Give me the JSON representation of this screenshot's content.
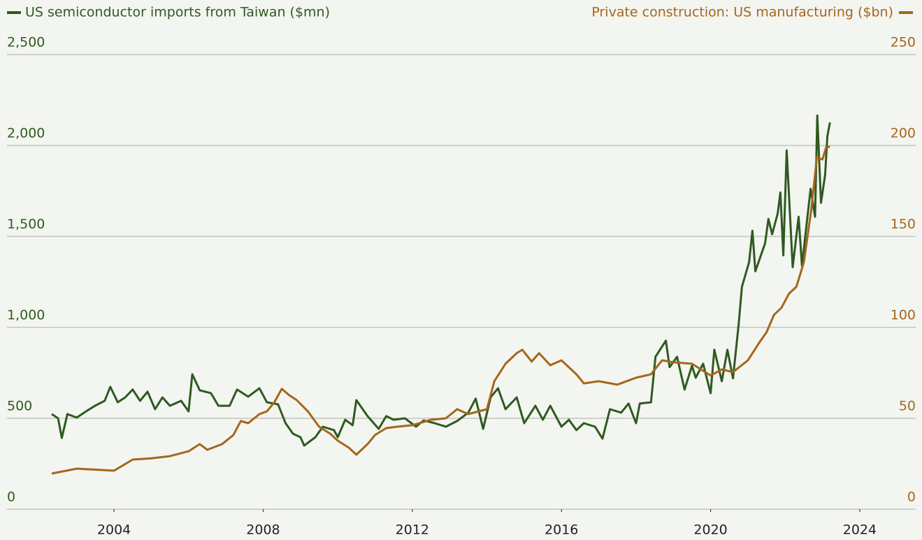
{
  "chart_data": {
    "type": "line",
    "xlim": [
      2001.13,
      2025.5
    ],
    "xticks": [
      2004,
      2008,
      2012,
      2016,
      2020,
      2024
    ],
    "ylim": [
      0,
      2500
    ],
    "yticks": [
      0,
      500,
      {
        "value": 1000,
        "label": "1,000"
      },
      {
        "value": 1500,
        "label": "1,500"
      },
      {
        "value": 2000,
        "label": "2,000"
      },
      {
        "value": 2500,
        "label": "2,500"
      }
    ],
    "y2lim": [
      0,
      250
    ],
    "y2ticks": [
      0,
      50,
      100,
      150,
      200,
      250
    ],
    "grid": true,
    "series": [
      {
        "name": "US semiconductor imports from Taiwan ($mn)",
        "color": "#2f5a20",
        "axis": "y",
        "x": [
          2002.33,
          2002.5,
          2002.6,
          2002.75,
          2003,
          2003.25,
          2003.5,
          2003.75,
          2003.9,
          2004.1,
          2004.3,
          2004.5,
          2004.7,
          2004.9,
          2005.1,
          2005.3,
          2005.5,
          2005.8,
          2006.0,
          2006.1,
          2006.3,
          2006.6,
          2006.8,
          2007.1,
          2007.3,
          2007.6,
          2007.9,
          2008.1,
          2008.4,
          2008.6,
          2008.8,
          2009.0,
          2009.1,
          2009.4,
          2009.6,
          2009.9,
          2010.0,
          2010.2,
          2010.4,
          2010.5,
          2010.8,
          2011.1,
          2011.3,
          2011.5,
          2011.8,
          2012.1,
          2012.3,
          2012.6,
          2012.9,
          2013.2,
          2013.5,
          2013.7,
          2013.9,
          2014.1,
          2014.3,
          2014.5,
          2014.8,
          2015.0,
          2015.3,
          2015.5,
          2015.7,
          2016.0,
          2016.2,
          2016.4,
          2016.6,
          2016.9,
          2017.1,
          2017.3,
          2017.6,
          2017.8,
          2018.0,
          2018.1,
          2018.4,
          2018.52,
          2018.8,
          2018.9,
          2019.1,
          2019.3,
          2019.5,
          2019.6,
          2019.8,
          2020.0,
          2020.1,
          2020.3,
          2020.45,
          2020.6,
          2020.75,
          2020.84,
          2021.03,
          2021.12,
          2021.2,
          2021.46,
          2021.55,
          2021.65,
          2021.8,
          2021.87,
          2021.95,
          2022.04,
          2022.2,
          2022.36,
          2022.45,
          2022.68,
          2022.8,
          2022.86,
          2022.96,
          2023.07,
          2023.13,
          2023.2
        ],
        "values": [
          523,
          500,
          392,
          523,
          504,
          538,
          570,
          596,
          673,
          588,
          615,
          658,
          596,
          646,
          550,
          615,
          569,
          596,
          538,
          742,
          654,
          638,
          569,
          569,
          658,
          619,
          665,
          588,
          577,
          473,
          415,
          396,
          350,
          396,
          454,
          435,
          396,
          492,
          462,
          600,
          512,
          442,
          512,
          492,
          500,
          454,
          488,
          473,
          454,
          485,
          531,
          608,
          442,
          615,
          665,
          550,
          615,
          473,
          569,
          492,
          569,
          454,
          492,
          435,
          473,
          454,
          388,
          550,
          531,
          581,
          473,
          581,
          588,
          838,
          927,
          781,
          838,
          658,
          788,
          723,
          800,
          638,
          877,
          704,
          877,
          720,
          1012,
          1223,
          1358,
          1531,
          1308,
          1462,
          1596,
          1512,
          1627,
          1742,
          1396,
          1973,
          1331,
          1608,
          1338,
          1762,
          1608,
          2165,
          1685,
          1838,
          2050,
          2127
        ]
      },
      {
        "name": "Private construction: US manufacturing ($bn)",
        "color": "#a5661b",
        "axis": "y2",
        "x": [
          2002.33,
          2003,
          2004,
          2004.5,
          2005,
          2005.5,
          2006,
          2006.3,
          2006.5,
          2006.9,
          2007.2,
          2007.4,
          2007.6,
          2007.9,
          2008.1,
          2008.3,
          2008.5,
          2008.7,
          2008.9,
          2009.2,
          2009.5,
          2009.8,
          2010.0,
          2010.3,
          2010.5,
          2010.8,
          2011.0,
          2011.3,
          2011.6,
          2012,
          2012.5,
          2012.9,
          2013.2,
          2013.5,
          2014,
          2014.2,
          2014.5,
          2014.8,
          2014.95,
          2015.2,
          2015.4,
          2015.7,
          2016,
          2016.4,
          2016.6,
          2017,
          2017.5,
          2018,
          2018.4,
          2018.7,
          2019,
          2019.5,
          2020,
          2020.3,
          2020.6,
          2021,
          2021.3,
          2021.5,
          2021.7,
          2021.9,
          2022.1,
          2022.3,
          2022.5,
          2022.7,
          2022.85,
          2023,
          2023.1,
          2023.2
        ],
        "values": [
          19.6,
          22.3,
          21.2,
          27.3,
          28,
          29.2,
          31.9,
          35.8,
          32.7,
          35.8,
          40.8,
          48.5,
          47.3,
          52.3,
          53.8,
          58.8,
          66.2,
          62.7,
          60,
          53.8,
          45.4,
          41.5,
          37.7,
          33.8,
          30,
          35.8,
          40.8,
          44.6,
          45.4,
          46.2,
          49.2,
          50,
          55,
          52.3,
          55,
          70.4,
          80,
          85.8,
          87.7,
          81.2,
          85.8,
          79.2,
          81.9,
          74.2,
          69.2,
          70.4,
          68.5,
          72.3,
          74.2,
          81.9,
          80.8,
          80,
          73.5,
          76.9,
          75.4,
          81.9,
          91.5,
          97.3,
          106.9,
          110.8,
          118.5,
          122.3,
          135.8,
          164.6,
          193.5,
          192.3,
          199.2,
          199.2
        ]
      }
    ]
  }
}
